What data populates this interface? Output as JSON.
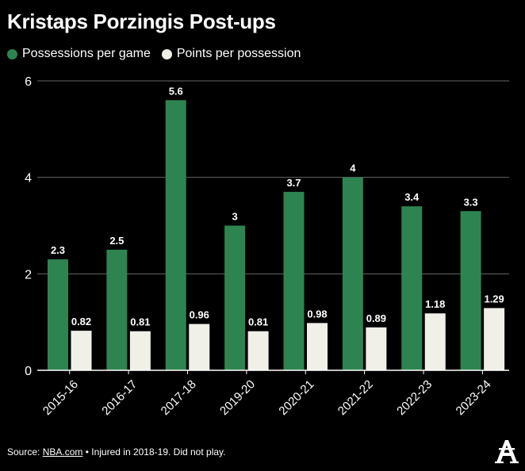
{
  "title": "Kristaps Porzingis Post-ups",
  "footer": {
    "source_label": "Source: ",
    "source_link": "NBA.com",
    "note": " • Injured in 2018-19. Did not play."
  },
  "logo_icon": "athletic-a-logo-icon",
  "colors": {
    "background": "#000000",
    "green": "#2e8450",
    "cream": "#f0efe8",
    "grid": "#666666",
    "text": "#ffffff"
  },
  "chart_data": {
    "type": "bar",
    "title": "Kristaps Porzingis Post-ups",
    "xlabel": "",
    "ylabel": "",
    "categories": [
      "2015-16",
      "2016-17",
      "2017-18",
      "2019-20",
      "2020-21",
      "2021-22",
      "2022-23",
      "2023-24"
    ],
    "series": [
      {
        "name": "Possessions per game",
        "values": [
          2.3,
          2.5,
          5.6,
          3,
          3.7,
          4,
          3.4,
          3.3
        ],
        "labels": [
          "2.3",
          "2.5",
          "5.6",
          "3",
          "3.7",
          "4",
          "3.4",
          "3.3"
        ]
      },
      {
        "name": "Points per possession",
        "values": [
          0.82,
          0.81,
          0.96,
          0.81,
          0.98,
          0.89,
          1.18,
          1.29
        ],
        "labels": [
          "0.82",
          "0.81",
          "0.96",
          "0.81",
          "0.98",
          "0.89",
          "1.18",
          "1.29"
        ]
      }
    ],
    "ylim": [
      0,
      6
    ],
    "yticks": [
      0,
      2,
      4,
      6
    ],
    "grid": true,
    "legend": "top-left"
  }
}
